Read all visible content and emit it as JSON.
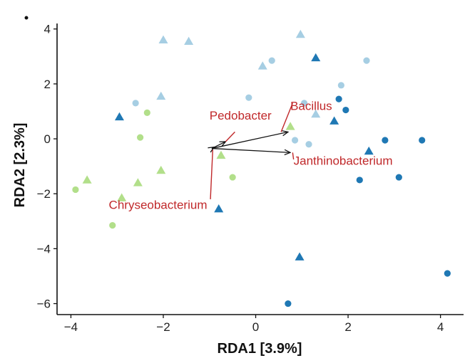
{
  "chart_data": {
    "type": "scatter",
    "xlabel": "RDA1   [3.9%]",
    "ylabel": "RDA2   [2.3%]",
    "xlim": [
      -4.3,
      4.5
    ],
    "ylim": [
      -6.4,
      4.2
    ],
    "xticks": [
      -4,
      -2,
      0,
      2,
      4
    ],
    "yticks": [
      4,
      2,
      0,
      -2,
      -4,
      -6
    ],
    "grid": false,
    "colors": {
      "light_blue": "#a6cee3",
      "dark_blue": "#1f78b4",
      "light_green": "#b2df8a",
      "arrow": "#111111",
      "label": "#c0282a"
    },
    "points": [
      {
        "x": -2.0,
        "y": 3.6,
        "shape": "triangle",
        "color": "light_blue"
      },
      {
        "x": -1.45,
        "y": 3.55,
        "shape": "triangle",
        "color": "light_blue"
      },
      {
        "x": 0.97,
        "y": 3.8,
        "shape": "triangle",
        "color": "light_blue"
      },
      {
        "x": 0.15,
        "y": 2.65,
        "shape": "triangle",
        "color": "light_blue"
      },
      {
        "x": 1.3,
        "y": 2.95,
        "shape": "triangle",
        "color": "dark_blue"
      },
      {
        "x": 0.35,
        "y": 2.85,
        "shape": "circle",
        "color": "light_blue"
      },
      {
        "x": 2.4,
        "y": 2.85,
        "shape": "circle",
        "color": "light_blue"
      },
      {
        "x": 1.85,
        "y": 1.95,
        "shape": "circle",
        "color": "light_blue"
      },
      {
        "x": -2.05,
        "y": 1.55,
        "shape": "triangle",
        "color": "light_blue"
      },
      {
        "x": -2.6,
        "y": 1.3,
        "shape": "circle",
        "color": "light_blue"
      },
      {
        "x": -0.15,
        "y": 1.5,
        "shape": "circle",
        "color": "light_blue"
      },
      {
        "x": 1.8,
        "y": 1.45,
        "shape": "circle",
        "color": "dark_blue"
      },
      {
        "x": 1.05,
        "y": 1.3,
        "shape": "circle",
        "color": "light_blue"
      },
      {
        "x": 1.95,
        "y": 1.05,
        "shape": "circle",
        "color": "dark_blue"
      },
      {
        "x": -2.35,
        "y": 0.95,
        "shape": "circle",
        "color": "light_green"
      },
      {
        "x": -2.95,
        "y": 0.8,
        "shape": "triangle",
        "color": "dark_blue"
      },
      {
        "x": 1.3,
        "y": 0.9,
        "shape": "triangle",
        "color": "light_blue"
      },
      {
        "x": 1.7,
        "y": 0.65,
        "shape": "triangle",
        "color": "dark_blue"
      },
      {
        "x": 0.75,
        "y": 0.45,
        "shape": "triangle",
        "color": "light_green"
      },
      {
        "x": -2.5,
        "y": 0.05,
        "shape": "circle",
        "color": "light_green"
      },
      {
        "x": 0.85,
        "y": -0.05,
        "shape": "circle",
        "color": "light_light"
      },
      {
        "x": 1.15,
        "y": -0.2,
        "shape": "circle",
        "color": "light_blue"
      },
      {
        "x": 2.8,
        "y": -0.05,
        "shape": "circle",
        "color": "dark_blue"
      },
      {
        "x": 3.6,
        "y": -0.05,
        "shape": "circle",
        "color": "dark_blue"
      },
      {
        "x": 2.45,
        "y": -0.45,
        "shape": "triangle",
        "color": "dark_blue"
      },
      {
        "x": -0.75,
        "y": -0.6,
        "shape": "triangle",
        "color": "light_green"
      },
      {
        "x": -2.05,
        "y": -1.15,
        "shape": "triangle",
        "color": "light_green"
      },
      {
        "x": -0.5,
        "y": -1.4,
        "shape": "circle",
        "color": "light_green"
      },
      {
        "x": 3.1,
        "y": -1.4,
        "shape": "circle",
        "color": "dark_blue"
      },
      {
        "x": 2.25,
        "y": -1.5,
        "shape": "circle",
        "color": "dark_blue"
      },
      {
        "x": -3.65,
        "y": -1.5,
        "shape": "triangle",
        "color": "light_green"
      },
      {
        "x": -2.55,
        "y": -1.6,
        "shape": "triangle",
        "color": "light_green"
      },
      {
        "x": -3.9,
        "y": -1.85,
        "shape": "circle",
        "color": "light_green"
      },
      {
        "x": -2.9,
        "y": -2.15,
        "shape": "triangle",
        "color": "light_green"
      },
      {
        "x": -0.8,
        "y": -2.55,
        "shape": "triangle",
        "color": "dark_blue"
      },
      {
        "x": -3.1,
        "y": -3.15,
        "shape": "circle",
        "color": "light_green"
      },
      {
        "x": 0.95,
        "y": -4.3,
        "shape": "triangle",
        "color": "dark_blue"
      },
      {
        "x": 4.15,
        "y": -4.9,
        "shape": "circle",
        "color": "dark_blue"
      },
      {
        "x": 0.7,
        "y": -6.0,
        "shape": "circle",
        "color": "dark_blue"
      }
    ],
    "arrows": [
      {
        "name": "Bacillus",
        "x0": -0.95,
        "y0": -0.35,
        "x1": 0.7,
        "y1": 0.25
      },
      {
        "name": "Pedobacter",
        "x0": -0.95,
        "y0": -0.35,
        "x1": -0.65,
        "y1": -0.1
      },
      {
        "name": "Janthinobacterium",
        "x0": -0.95,
        "y0": -0.35,
        "x1": 0.75,
        "y1": -0.5
      },
      {
        "name": "Chryseobacterium",
        "x0": -0.95,
        "y0": -0.35,
        "x1": -0.9,
        "y1": -0.3
      }
    ],
    "taxa": [
      {
        "name": "Pedobacter",
        "x": -1.0,
        "y": 0.7,
        "anchor": "start",
        "lx0": -0.45,
        "ly0": 0.25,
        "lx1": -0.65,
        "ly1": -0.1
      },
      {
        "name": "Bacillus",
        "x": 0.75,
        "y": 1.05,
        "anchor": "start",
        "lx0": 0.8,
        "ly0": 1.3,
        "lx1": 0.55,
        "ly1": 0.25
      },
      {
        "name": "Janthinobacterium",
        "x": 0.82,
        "y": -0.95,
        "anchor": "start",
        "lx0": 0.82,
        "ly0": -0.75,
        "lx1": 0.8,
        "ly1": -0.5
      },
      {
        "name": "Chryseobacterium",
        "x": -1.05,
        "y": -2.55,
        "anchor": "end",
        "lx0": -0.98,
        "ly0": -2.2,
        "lx1": -0.93,
        "ly1": -0.4
      }
    ]
  }
}
